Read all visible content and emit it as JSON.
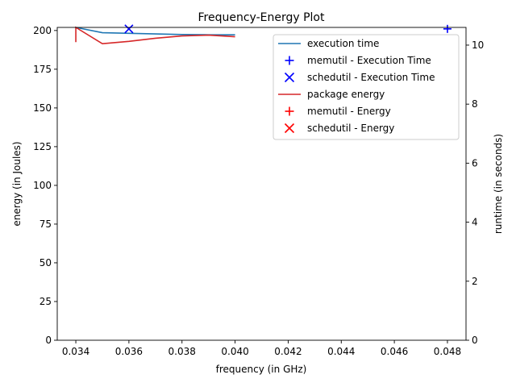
{
  "chart_data": {
    "type": "line",
    "title": "Frequency-Energy Plot",
    "xlabel": "frequency (in GHz)",
    "ylabel_left": "energy (in Joules)",
    "ylabel_right": "runtime (in seconds)",
    "xlim": [
      0.0333,
      0.0487
    ],
    "ylim_left": [
      0,
      202
    ],
    "ylim_right": [
      0,
      10.6
    ],
    "x_ticks": [
      "0.034",
      "0.036",
      "0.038",
      "0.040",
      "0.042",
      "0.044",
      "0.046",
      "0.048"
    ],
    "y_left_ticks": [
      "0",
      "25",
      "50",
      "75",
      "100",
      "125",
      "150",
      "175",
      "200"
    ],
    "y_right_ticks": [
      "0",
      "2",
      "4",
      "6",
      "8",
      "10"
    ],
    "grid": false,
    "legend_position": "top-right",
    "series": [
      {
        "name": "execution time",
        "kind": "line",
        "axis": "right",
        "color": "#1f77b4",
        "points": [
          [
            0.034,
            10.6
          ],
          [
            0.035,
            10.42
          ],
          [
            0.036,
            10.4
          ],
          [
            0.037,
            10.38
          ],
          [
            0.038,
            10.36
          ],
          [
            0.039,
            10.35
          ],
          [
            0.04,
            10.35
          ]
        ]
      },
      {
        "name": "memutil - Execution Time",
        "kind": "marker",
        "marker": "plus",
        "axis": "right",
        "color": "#0000ff",
        "points": [
          [
            0.048,
            10.55
          ]
        ]
      },
      {
        "name": "schedutil - Execution Time",
        "kind": "marker",
        "marker": "x",
        "axis": "right",
        "color": "#0000ff",
        "points": [
          [
            0.036,
            10.55
          ]
        ]
      },
      {
        "name": "package energy",
        "kind": "line",
        "axis": "left",
        "color": "#d62728",
        "points": [
          [
            0.034,
            192.5
          ],
          [
            0.034,
            202
          ],
          [
            0.035,
            191.5
          ],
          [
            0.036,
            193
          ],
          [
            0.037,
            195
          ],
          [
            0.038,
            196.5
          ],
          [
            0.039,
            197
          ],
          [
            0.04,
            196
          ]
        ]
      },
      {
        "name": "memutil - Energy",
        "kind": "marker",
        "marker": "plus",
        "axis": "left",
        "color": "#ff0000",
        "points": []
      },
      {
        "name": "schedutil - Energy",
        "kind": "marker",
        "marker": "x",
        "axis": "left",
        "color": "#ff0000",
        "points": []
      }
    ]
  }
}
